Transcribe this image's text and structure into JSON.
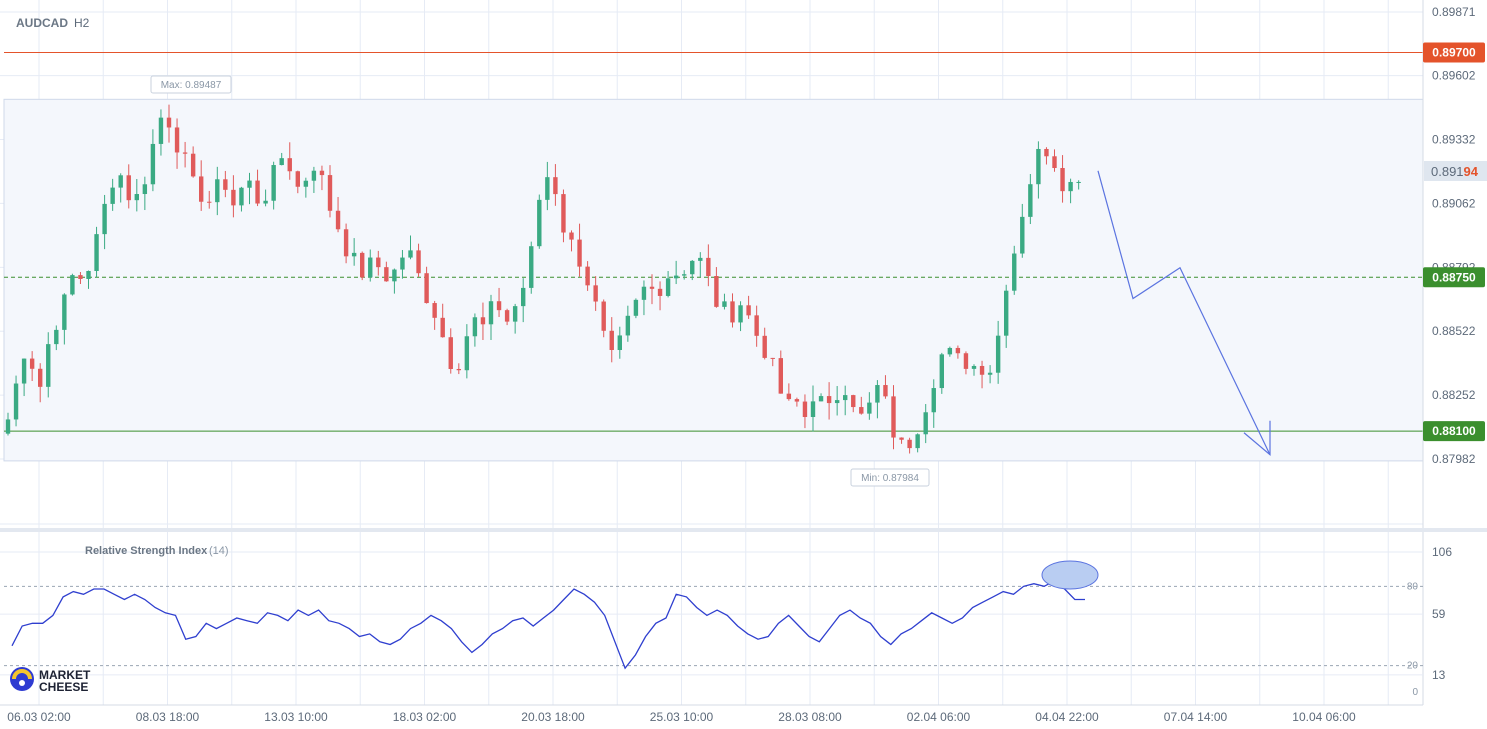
{
  "chart_data": {
    "type": "candlestick",
    "symbol": "AUDCAD",
    "timeframe": "H2",
    "price_axis": {
      "ylim": [
        0.8774,
        0.8991
      ],
      "tick_labels": [
        "0.89871",
        "0.89602",
        "0.89332",
        "0.89062",
        "0.88792",
        "0.88522",
        "0.88252",
        "0.87982"
      ],
      "current_price": "0.89194",
      "current_price_prefix": "0.891",
      "current_price_suffix": "94"
    },
    "x_axis": {
      "tick_labels": [
        "06.03 02:00",
        "08.03 18:00",
        "13.03 10:00",
        "18.03 02:00",
        "20.03 18:00",
        "25.03 10:00",
        "28.03 08:00",
        "02.04 06:00",
        "04.04 22:00",
        "07.04 14:00",
        "10.04 06:00"
      ]
    },
    "levels": [
      {
        "name": "resistance",
        "value": 0.897,
        "label": "0.89700",
        "color": "#e4532b"
      },
      {
        "name": "pivot",
        "value": 0.8875,
        "label": "0.88750",
        "color": "#3b8f2e"
      },
      {
        "name": "support",
        "value": 0.881,
        "label": "0.88100",
        "color": "#3b8f2e"
      }
    ],
    "range_box": {
      "high": 0.89487,
      "low": 0.87984
    },
    "annotations": {
      "max": {
        "label": "Max: 0.89487",
        "value": 0.89487
      },
      "min": {
        "label": "Min: 0.87984",
        "value": 0.87984
      }
    },
    "forecast_path": [
      {
        "bar": 1098,
        "price": 0.892
      },
      {
        "bar": 1133,
        "price": 0.8866
      },
      {
        "bar": 1180,
        "price": 0.8879
      },
      {
        "bar": 1270,
        "price": 0.88
      }
    ],
    "price_series": [
      0.8815,
      0.883,
      0.8845,
      0.8838,
      0.8828,
      0.885,
      0.8858,
      0.8866,
      0.8878,
      0.8874,
      0.8882,
      0.8895,
      0.891,
      0.8921,
      0.8916,
      0.8905,
      0.8912,
      0.8923,
      0.894,
      0.8946,
      0.8934,
      0.8928,
      0.8914,
      0.8912,
      0.8906,
      0.8911,
      0.8917,
      0.8905,
      0.8912,
      0.8915,
      0.8908,
      0.891,
      0.8918,
      0.8926,
      0.8922,
      0.8912,
      0.8918,
      0.8924,
      0.8914,
      0.8902,
      0.8895,
      0.8885,
      0.888,
      0.8876,
      0.8882,
      0.8878,
      0.8874,
      0.888,
      0.8888,
      0.888,
      0.887,
      0.8864,
      0.8855,
      0.8842,
      0.8836,
      0.8848,
      0.8858,
      0.8852,
      0.886,
      0.8864,
      0.8856,
      0.8862,
      0.887,
      0.8884,
      0.8908,
      0.8918,
      0.8912,
      0.8895,
      0.8888,
      0.8882,
      0.8872,
      0.886,
      0.8846,
      0.8838,
      0.885,
      0.8858,
      0.8866,
      0.8872,
      0.8868,
      0.8874,
      0.8878,
      0.8876,
      0.8882,
      0.8884,
      0.8878,
      0.8866,
      0.8862,
      0.8858,
      0.8866,
      0.886,
      0.8852,
      0.8846,
      0.8838,
      0.8827,
      0.882,
      0.8822,
      0.8816,
      0.8826,
      0.8822,
      0.8818,
      0.8826,
      0.883,
      0.8822,
      0.8814,
      0.8822,
      0.883,
      0.8818,
      0.8806,
      0.8802,
      0.8808,
      0.8816,
      0.8826,
      0.8838,
      0.8846,
      0.8838,
      0.8842,
      0.8836,
      0.884,
      0.8834,
      0.8842,
      0.887,
      0.8882,
      0.89,
      0.8914,
      0.8926,
      0.893,
      0.8925,
      0.8916,
      0.8914,
      0.8919
    ]
  },
  "rsi": {
    "title": "Relative Strength Index",
    "period": "(14)",
    "ylim": [
      0,
      106
    ],
    "tick_labels": [
      "106",
      "59",
      "13"
    ],
    "level_labels": [
      "80",
      "20",
      "0"
    ],
    "series": [
      35,
      50,
      52,
      52,
      58,
      72,
      76,
      74,
      78,
      78,
      74,
      70,
      74,
      70,
      64,
      60,
      58,
      40,
      42,
      52,
      48,
      52,
      56,
      54,
      52,
      60,
      58,
      54,
      62,
      58,
      62,
      54,
      52,
      48,
      42,
      44,
      38,
      36,
      40,
      48,
      52,
      58,
      54,
      48,
      38,
      30,
      36,
      44,
      48,
      54,
      56,
      50,
      56,
      62,
      70,
      78,
      74,
      68,
      58,
      38,
      18,
      28,
      42,
      52,
      56,
      74,
      72,
      64,
      58,
      62,
      58,
      50,
      44,
      40,
      42,
      52,
      58,
      50,
      42,
      38,
      48,
      58,
      62,
      56,
      52,
      42,
      36,
      44,
      48,
      54,
      60,
      56,
      52,
      56,
      64,
      68,
      72,
      76,
      74,
      80,
      82,
      80,
      84,
      78,
      70,
      70
    ],
    "overbought": 80,
    "oversold": 20
  },
  "branding": {
    "logo_line1": "MARKET",
    "logo_line2": "CHEESE"
  },
  "colors": {
    "bull": "#3aaa83",
    "bear": "#e05a5a",
    "rsi_line": "#2f3fcf",
    "forecast": "#5b74e0",
    "current_price_bg": "#dfe6ef",
    "grid": "#e6ebf5"
  }
}
